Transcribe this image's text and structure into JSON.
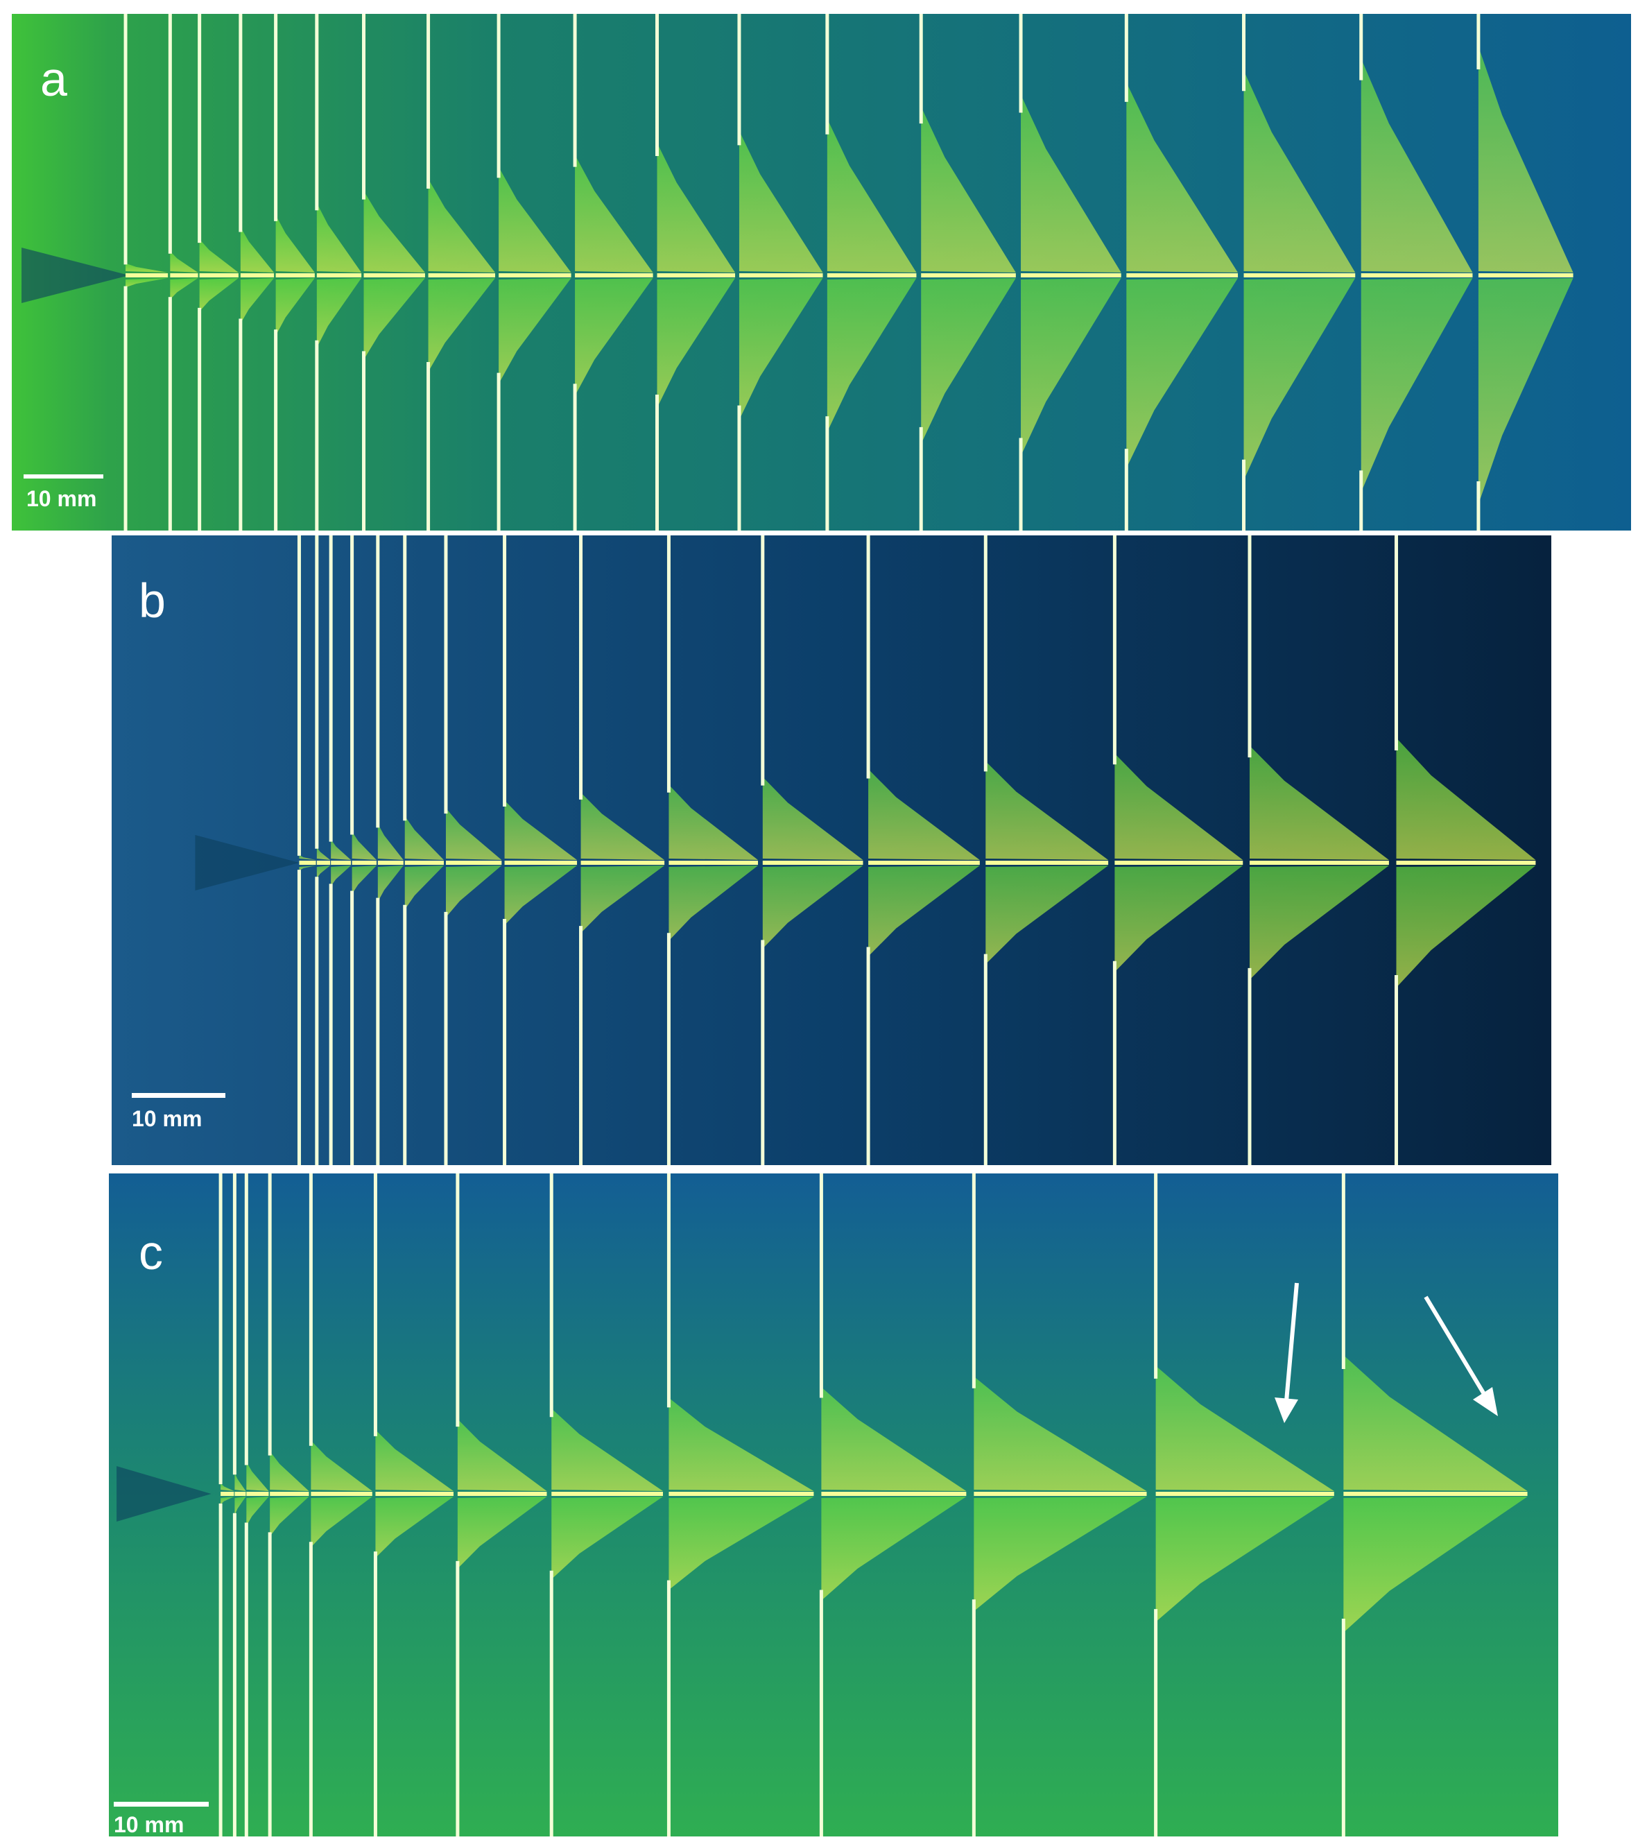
{
  "panels": [
    {
      "label": "a",
      "scale_bar": "10 mm"
    },
    {
      "label": "b",
      "scale_bar": "10 mm"
    },
    {
      "label": "c",
      "scale_bar": "10 mm"
    }
  ]
}
